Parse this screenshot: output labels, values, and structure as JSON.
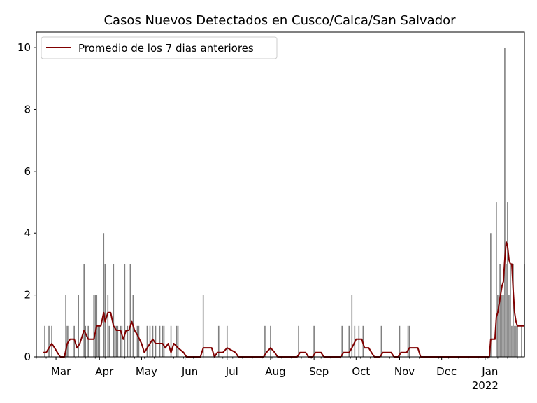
{
  "chart_data": {
    "type": "bar",
    "title": "Casos Nuevos Detectados en Cusco/Calca/San Salvador",
    "xlabel": "",
    "ylabel": "",
    "ylim": [
      0,
      10.5
    ],
    "xlim": [
      "2021-02-15",
      "2022-01-29"
    ],
    "y_ticks": [
      "0",
      "2",
      "4",
      "6",
      "8",
      "10"
    ],
    "x_ticks": [
      {
        "date": "2021-03-01",
        "label": "Mar"
      },
      {
        "date": "2021-04-01",
        "label": "Apr"
      },
      {
        "date": "2021-05-01",
        "label": "May"
      },
      {
        "date": "2021-06-01",
        "label": "Jun"
      },
      {
        "date": "2021-07-01",
        "label": "Jul"
      },
      {
        "date": "2021-08-01",
        "label": "Aug"
      },
      {
        "date": "2021-09-01",
        "label": "Sep"
      },
      {
        "date": "2021-10-01",
        "label": "Oct"
      },
      {
        "date": "2021-11-01",
        "label": "Nov"
      },
      {
        "date": "2021-12-01",
        "label": "Dec"
      },
      {
        "date": "2022-01-01",
        "label": "Jan"
      }
    ],
    "year_label": "2022",
    "grid": false,
    "legend_position": "upper-left",
    "bar_color": "#808080",
    "line_color": "#800000",
    "series": [
      {
        "kind": "bar",
        "points": [
          [
            "2021-02-21",
            1
          ],
          [
            "2021-02-24",
            1
          ],
          [
            "2021-02-26",
            1
          ],
          [
            "2021-03-08",
            2
          ],
          [
            "2021-03-09",
            1
          ],
          [
            "2021-03-10",
            1
          ],
          [
            "2021-03-14",
            1
          ],
          [
            "2021-03-17",
            2
          ],
          [
            "2021-03-21",
            3
          ],
          [
            "2021-03-22",
            1
          ],
          [
            "2021-03-24",
            1
          ],
          [
            "2021-03-28",
            2
          ],
          [
            "2021-03-29",
            2
          ],
          [
            "2021-03-30",
            2
          ],
          [
            "2021-03-31",
            1
          ],
          [
            "2021-04-01",
            1
          ],
          [
            "2021-04-04",
            4
          ],
          [
            "2021-04-05",
            3
          ],
          [
            "2021-04-07",
            2
          ],
          [
            "2021-04-08",
            1
          ],
          [
            "2021-04-11",
            3
          ],
          [
            "2021-04-12",
            1
          ],
          [
            "2021-04-13",
            1
          ],
          [
            "2021-04-14",
            1
          ],
          [
            "2021-04-16",
            1
          ],
          [
            "2021-04-17",
            1
          ],
          [
            "2021-04-19",
            3
          ],
          [
            "2021-04-21",
            1
          ],
          [
            "2021-04-23",
            3
          ],
          [
            "2021-04-25",
            2
          ],
          [
            "2021-04-28",
            1
          ],
          [
            "2021-04-29",
            1
          ],
          [
            "2021-05-05",
            1
          ],
          [
            "2021-05-07",
            1
          ],
          [
            "2021-05-09",
            1
          ],
          [
            "2021-05-11",
            1
          ],
          [
            "2021-05-14",
            1
          ],
          [
            "2021-05-16",
            1
          ],
          [
            "2021-05-17",
            1
          ],
          [
            "2021-05-22",
            1
          ],
          [
            "2021-05-26",
            1
          ],
          [
            "2021-05-27",
            1
          ],
          [
            "2021-06-14",
            2
          ],
          [
            "2021-06-25",
            1
          ],
          [
            "2021-07-01",
            1
          ],
          [
            "2021-07-28",
            1
          ],
          [
            "2021-08-01",
            1
          ],
          [
            "2021-08-21",
            1
          ],
          [
            "2021-09-01",
            1
          ],
          [
            "2021-09-21",
            1
          ],
          [
            "2021-09-26",
            1
          ],
          [
            "2021-09-28",
            2
          ],
          [
            "2021-09-30",
            1
          ],
          [
            "2021-10-03",
            1
          ],
          [
            "2021-10-06",
            1
          ],
          [
            "2021-10-19",
            1
          ],
          [
            "2021-11-01",
            1
          ],
          [
            "2021-11-07",
            1
          ],
          [
            "2021-11-08",
            1
          ],
          [
            "2022-01-05",
            4
          ],
          [
            "2022-01-09",
            5
          ],
          [
            "2022-01-10",
            2
          ],
          [
            "2022-01-11",
            3
          ],
          [
            "2022-01-12",
            3
          ],
          [
            "2022-01-13",
            2
          ],
          [
            "2022-01-14",
            2
          ],
          [
            "2022-01-15",
            10
          ],
          [
            "2022-01-16",
            3
          ],
          [
            "2022-01-17",
            5
          ],
          [
            "2022-01-18",
            2
          ],
          [
            "2022-01-19",
            3
          ],
          [
            "2022-01-20",
            1
          ],
          [
            "2022-01-21",
            3
          ],
          [
            "2022-01-22",
            1
          ],
          [
            "2022-01-23",
            1
          ],
          [
            "2022-01-24",
            1
          ],
          [
            "2022-01-27",
            1
          ],
          [
            "2022-01-29",
            3
          ]
        ]
      },
      {
        "kind": "line",
        "name": "Promedio de los 7 dias anteriores",
        "points": [
          [
            "2021-02-20",
            0.14
          ],
          [
            "2021-02-22",
            0.14
          ],
          [
            "2021-02-24",
            0.29
          ],
          [
            "2021-02-26",
            0.43
          ],
          [
            "2021-02-28",
            0.29
          ],
          [
            "2021-03-02",
            0.14
          ],
          [
            "2021-03-04",
            0.0
          ],
          [
            "2021-03-07",
            0.0
          ],
          [
            "2021-03-09",
            0.43
          ],
          [
            "2021-03-11",
            0.57
          ],
          [
            "2021-03-14",
            0.57
          ],
          [
            "2021-03-16",
            0.29
          ],
          [
            "2021-03-18",
            0.43
          ],
          [
            "2021-03-21",
            0.86
          ],
          [
            "2021-03-24",
            0.57
          ],
          [
            "2021-03-28",
            0.57
          ],
          [
            "2021-03-30",
            1.0
          ],
          [
            "2021-04-02",
            1.0
          ],
          [
            "2021-04-04",
            1.43
          ],
          [
            "2021-04-05",
            1.14
          ],
          [
            "2021-04-07",
            1.43
          ],
          [
            "2021-04-09",
            1.43
          ],
          [
            "2021-04-11",
            1.0
          ],
          [
            "2021-04-13",
            0.86
          ],
          [
            "2021-04-16",
            0.86
          ],
          [
            "2021-04-18",
            0.57
          ],
          [
            "2021-04-20",
            0.86
          ],
          [
            "2021-04-22",
            0.86
          ],
          [
            "2021-04-24",
            1.14
          ],
          [
            "2021-04-26",
            0.86
          ],
          [
            "2021-04-28",
            0.71
          ],
          [
            "2021-05-01",
            0.43
          ],
          [
            "2021-05-03",
            0.14
          ],
          [
            "2021-05-05",
            0.29
          ],
          [
            "2021-05-07",
            0.43
          ],
          [
            "2021-05-09",
            0.57
          ],
          [
            "2021-05-11",
            0.43
          ],
          [
            "2021-05-14",
            0.43
          ],
          [
            "2021-05-16",
            0.43
          ],
          [
            "2021-05-18",
            0.29
          ],
          [
            "2021-05-20",
            0.43
          ],
          [
            "2021-05-22",
            0.14
          ],
          [
            "2021-05-24",
            0.43
          ],
          [
            "2021-05-27",
            0.29
          ],
          [
            "2021-05-31",
            0.14
          ],
          [
            "2021-06-02",
            0.0
          ],
          [
            "2021-06-12",
            0.0
          ],
          [
            "2021-06-14",
            0.29
          ],
          [
            "2021-06-20",
            0.29
          ],
          [
            "2021-06-22",
            0.0
          ],
          [
            "2021-06-24",
            0.14
          ],
          [
            "2021-06-28",
            0.14
          ],
          [
            "2021-07-01",
            0.29
          ],
          [
            "2021-07-07",
            0.14
          ],
          [
            "2021-07-09",
            0.0
          ],
          [
            "2021-07-27",
            0.0
          ],
          [
            "2021-07-29",
            0.14
          ],
          [
            "2021-08-01",
            0.29
          ],
          [
            "2021-08-04",
            0.14
          ],
          [
            "2021-08-06",
            0.0
          ],
          [
            "2021-08-20",
            0.0
          ],
          [
            "2021-08-22",
            0.14
          ],
          [
            "2021-08-26",
            0.14
          ],
          [
            "2021-08-28",
            0.0
          ],
          [
            "2021-08-31",
            0.0
          ],
          [
            "2021-09-02",
            0.14
          ],
          [
            "2021-09-06",
            0.14
          ],
          [
            "2021-09-08",
            0.0
          ],
          [
            "2021-09-20",
            0.0
          ],
          [
            "2021-09-22",
            0.14
          ],
          [
            "2021-09-26",
            0.14
          ],
          [
            "2021-09-28",
            0.29
          ],
          [
            "2021-10-01",
            0.57
          ],
          [
            "2021-10-05",
            0.57
          ],
          [
            "2021-10-07",
            0.29
          ],
          [
            "2021-10-10",
            0.29
          ],
          [
            "2021-10-12",
            0.14
          ],
          [
            "2021-10-14",
            0.0
          ],
          [
            "2021-10-18",
            0.0
          ],
          [
            "2021-10-20",
            0.14
          ],
          [
            "2021-10-26",
            0.14
          ],
          [
            "2021-10-28",
            0.0
          ],
          [
            "2021-10-31",
            0.0
          ],
          [
            "2021-11-02",
            0.14
          ],
          [
            "2021-11-06",
            0.14
          ],
          [
            "2021-11-08",
            0.29
          ],
          [
            "2021-11-14",
            0.29
          ],
          [
            "2021-11-16",
            0.0
          ],
          [
            "2022-01-04",
            0.0
          ],
          [
            "2022-01-05",
            0.57
          ],
          [
            "2022-01-08",
            0.57
          ],
          [
            "2022-01-09",
            1.29
          ],
          [
            "2022-01-10",
            1.43
          ],
          [
            "2022-01-11",
            1.71
          ],
          [
            "2022-01-12",
            2.0
          ],
          [
            "2022-01-13",
            2.29
          ],
          [
            "2022-01-14",
            2.43
          ],
          [
            "2022-01-15",
            3.14
          ],
          [
            "2022-01-16",
            3.71
          ],
          [
            "2022-01-17",
            3.57
          ],
          [
            "2022-01-18",
            3.14
          ],
          [
            "2022-01-19",
            3.0
          ],
          [
            "2022-01-20",
            3.0
          ],
          [
            "2022-01-21",
            2.14
          ],
          [
            "2022-01-22",
            1.43
          ],
          [
            "2022-01-23",
            1.14
          ],
          [
            "2022-01-24",
            1.0
          ],
          [
            "2022-01-26",
            1.0
          ],
          [
            "2022-01-29",
            1.0
          ]
        ]
      }
    ]
  }
}
